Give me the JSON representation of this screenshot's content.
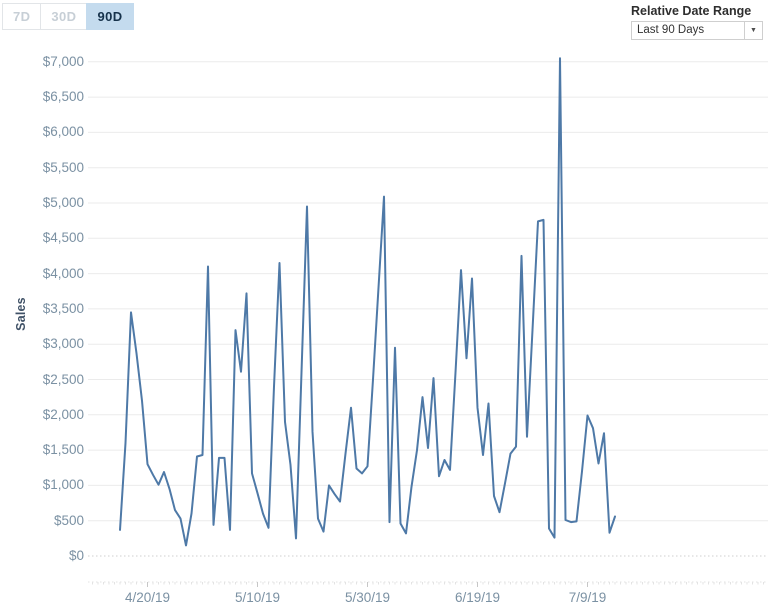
{
  "toolbar": {
    "range_buttons": [
      {
        "label": "7D",
        "selected": false
      },
      {
        "label": "30D",
        "selected": false
      },
      {
        "label": "90D",
        "selected": true
      }
    ],
    "selected_bg": "#c4dbee"
  },
  "filter": {
    "label": "Relative Date Range",
    "dropdown_value": "Last 90 Days",
    "dropdown_arrow_glyph": "▼"
  },
  "chart_data": {
    "type": "line",
    "title": "",
    "xlabel": "",
    "ylabel": "Sales",
    "ylim": [
      0,
      7000
    ],
    "grid": true,
    "legend": "none",
    "line_color": "#4e79a7",
    "y_ticks": [
      "$0",
      "$500",
      "$1,000",
      "$1,500",
      "$2,000",
      "$2,500",
      "$3,000",
      "$3,500",
      "$4,000",
      "$4,500",
      "$5,000",
      "$5,500",
      "$6,000",
      "$6,500",
      "$7,000"
    ],
    "x_ticks": [
      {
        "label": "4/20/19",
        "index": 5
      },
      {
        "label": "5/10/19",
        "index": 25
      },
      {
        "label": "5/30/19",
        "index": 45
      },
      {
        "label": "6/19/19",
        "index": 65
      },
      {
        "label": "7/9/19",
        "index": 85
      }
    ],
    "x": [
      "4/15/19",
      "4/16/19",
      "4/17/19",
      "4/18/19",
      "4/19/19",
      "4/20/19",
      "4/21/19",
      "4/22/19",
      "4/23/19",
      "4/24/19",
      "4/25/19",
      "4/26/19",
      "4/27/19",
      "4/28/19",
      "4/29/19",
      "4/30/19",
      "5/1/19",
      "5/2/19",
      "5/3/19",
      "5/4/19",
      "5/5/19",
      "5/6/19",
      "5/7/19",
      "5/8/19",
      "5/9/19",
      "5/10/19",
      "5/11/19",
      "5/12/19",
      "5/13/19",
      "5/14/19",
      "5/15/19",
      "5/16/19",
      "5/17/19",
      "5/18/19",
      "5/19/19",
      "5/20/19",
      "5/21/19",
      "5/22/19",
      "5/23/19",
      "5/24/19",
      "5/25/19",
      "5/26/19",
      "5/27/19",
      "5/28/19",
      "5/29/19",
      "5/30/19",
      "5/31/19",
      "6/1/19",
      "6/2/19",
      "6/3/19",
      "6/4/19",
      "6/5/19",
      "6/6/19",
      "6/7/19",
      "6/8/19",
      "6/9/19",
      "6/10/19",
      "6/11/19",
      "6/12/19",
      "6/13/19",
      "6/14/19",
      "6/15/19",
      "6/16/19",
      "6/17/19",
      "6/18/19",
      "6/19/19",
      "6/20/19",
      "6/21/19",
      "6/22/19",
      "6/23/19",
      "6/24/19",
      "6/25/19",
      "6/26/19",
      "6/27/19",
      "6/28/19",
      "6/29/19",
      "6/30/19",
      "7/1/19",
      "7/2/19",
      "7/3/19",
      "7/4/19",
      "7/5/19",
      "7/6/19",
      "7/7/19",
      "7/8/19",
      "7/9/19",
      "7/10/19",
      "7/11/19",
      "7/12/19",
      "7/13/19",
      "7/14/19"
    ],
    "series": [
      {
        "name": "Sales",
        "values": [
          370,
          1600,
          3450,
          2870,
          2200,
          1300,
          1150,
          1010,
          1190,
          950,
          650,
          530,
          150,
          600,
          1410,
          1430,
          4100,
          440,
          1390,
          1390,
          370,
          3200,
          2610,
          3720,
          1170,
          890,
          600,
          400,
          2400,
          4150,
          1900,
          1290,
          250,
          2600,
          4950,
          1760,
          530,
          345,
          1000,
          880,
          770,
          1450,
          2100,
          1240,
          1170,
          1270,
          2500,
          3800,
          5090,
          480,
          2950,
          460,
          320,
          980,
          1500,
          2250,
          1530,
          2520,
          1130,
          1360,
          1220,
          2600,
          4050,
          2800,
          3930,
          2100,
          1430,
          2160,
          850,
          620,
          1030,
          1450,
          1550,
          4250,
          1690,
          3200,
          4740,
          4760,
          390,
          260,
          7050,
          510,
          480,
          490,
          1200,
          1990,
          1810,
          1310,
          1740,
          330,
          560
        ]
      }
    ]
  }
}
